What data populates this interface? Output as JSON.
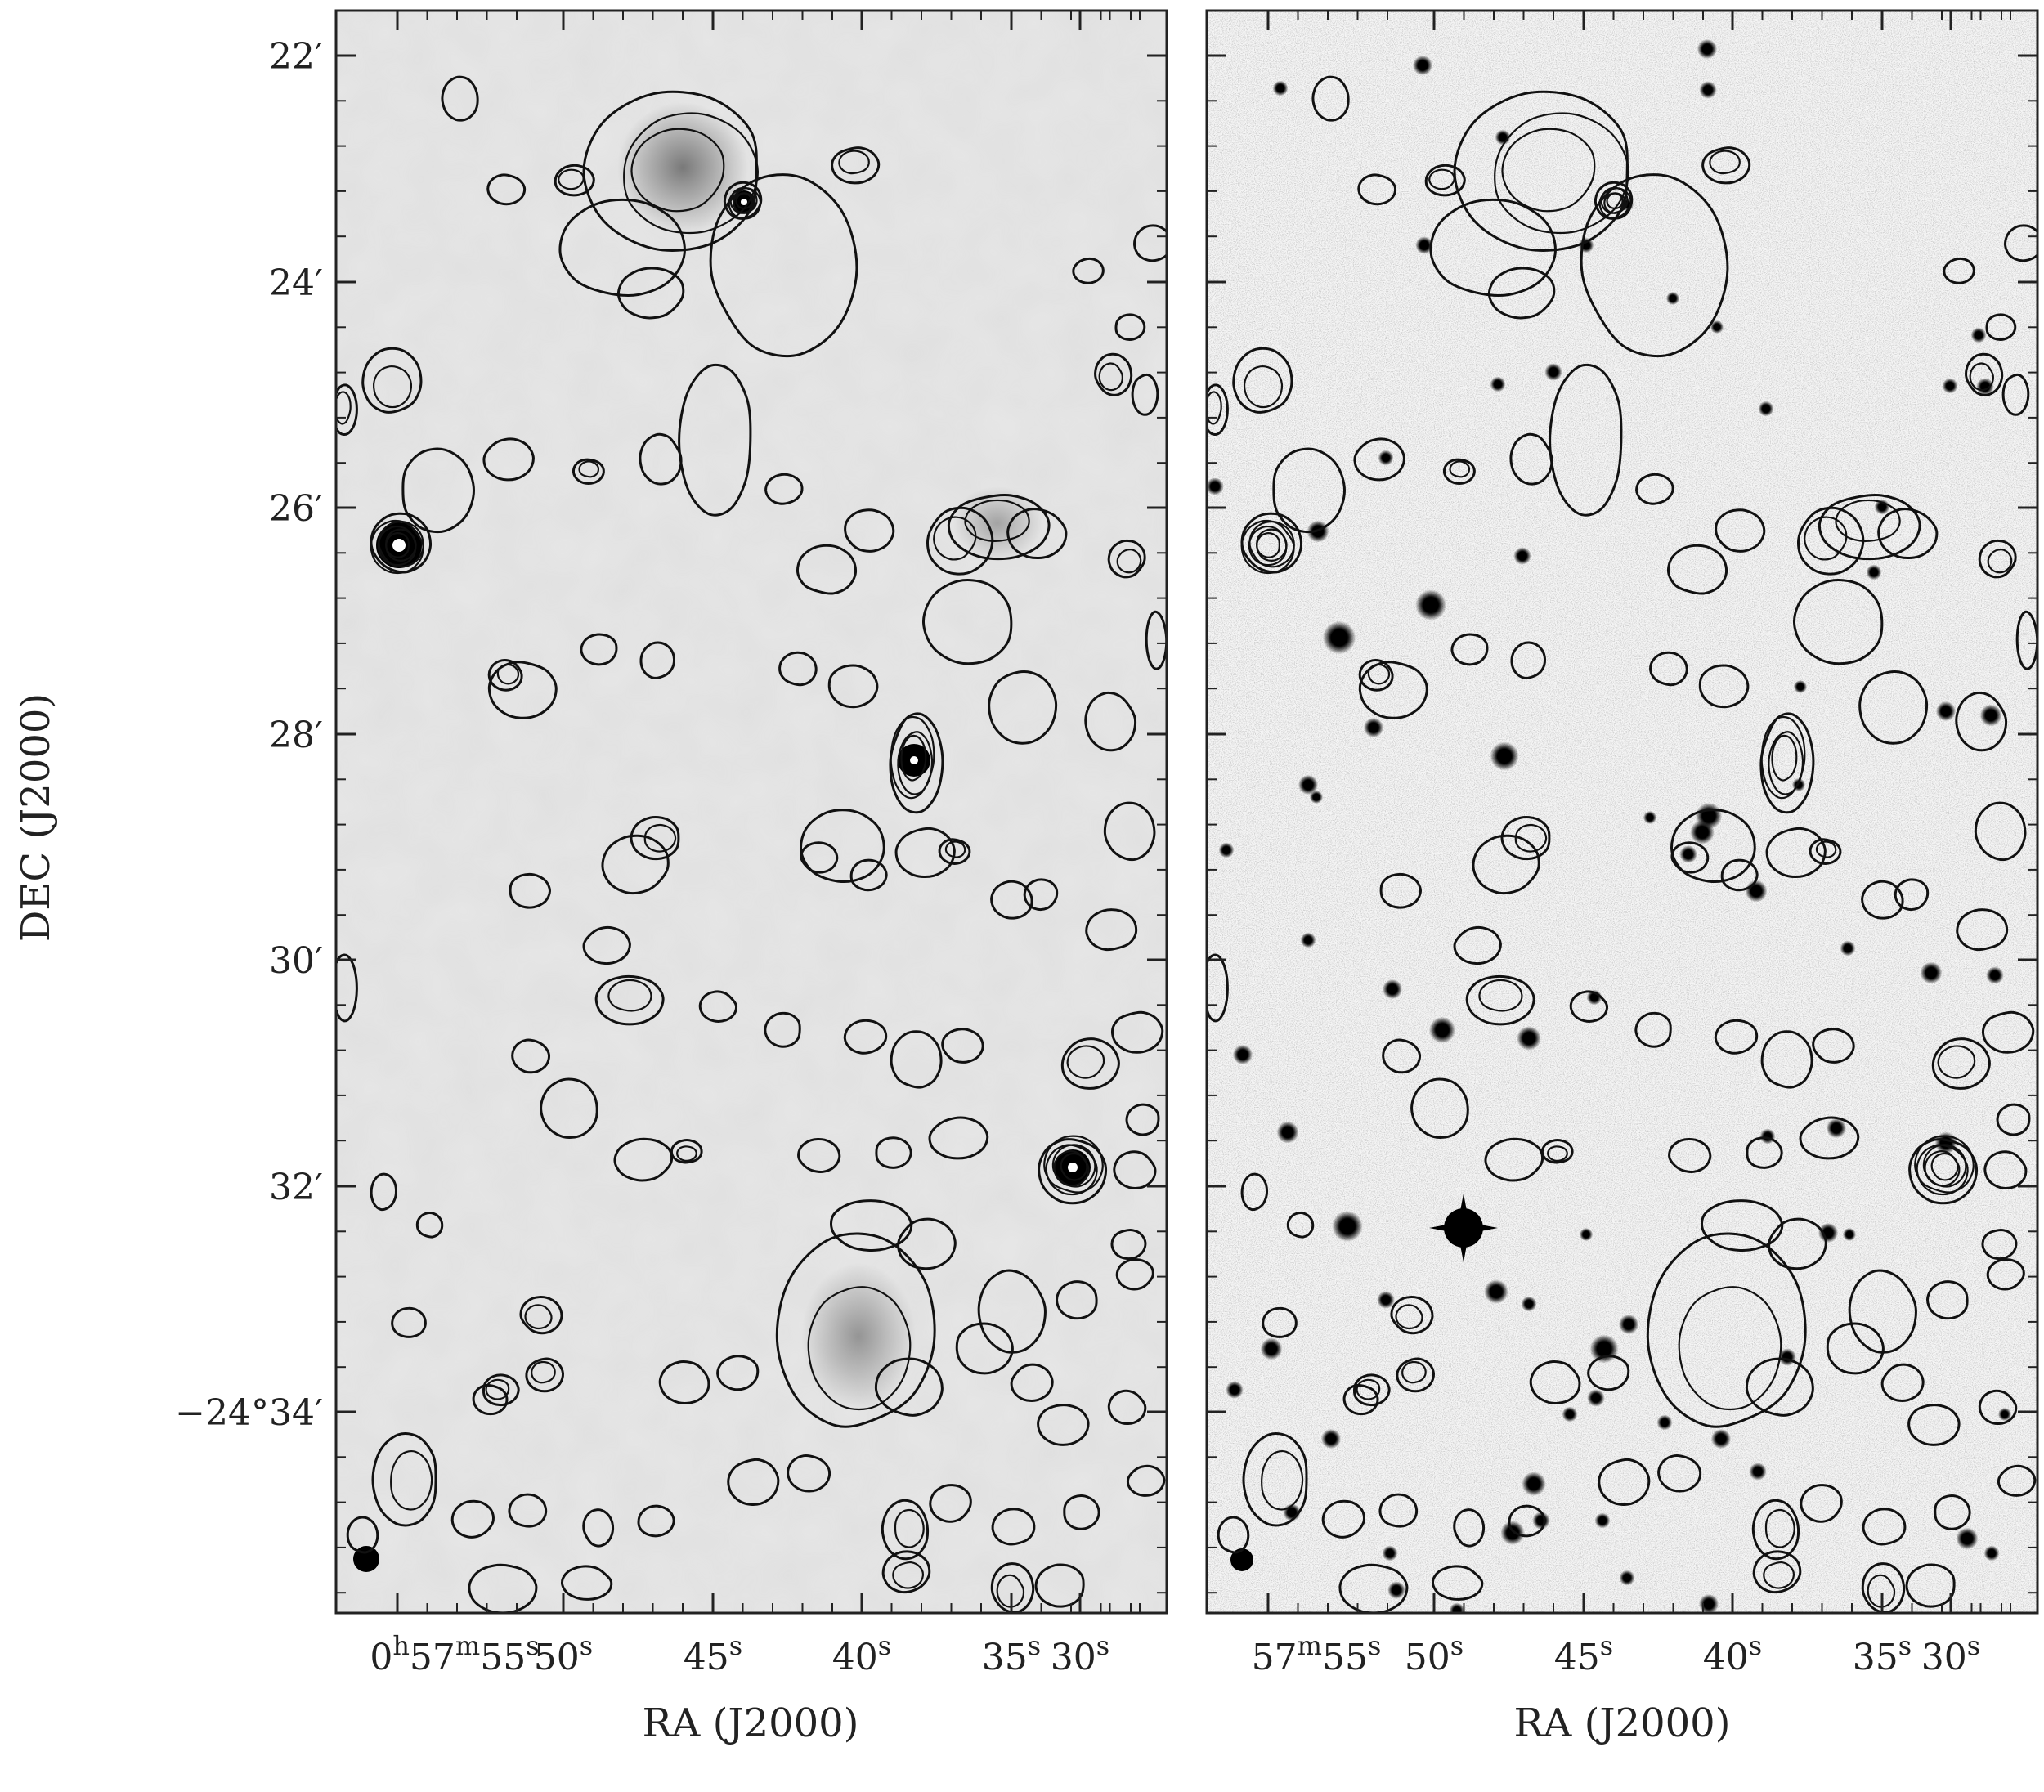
{
  "figure": {
    "ylabel": "DEC (J2000)",
    "panels": [
      {
        "id": "radio",
        "xlabel": "RA (J2000)"
      },
      {
        "id": "optical",
        "xlabel": "RA (J2000)"
      }
    ],
    "dec_ticks": [
      {
        "label": "22′"
      },
      {
        "label": "24′"
      },
      {
        "label": "26′"
      },
      {
        "label": "28′"
      },
      {
        "label": "30′"
      },
      {
        "label": "32′"
      },
      {
        "label": "−24°34′"
      }
    ],
    "ra_ticks_left": [
      {
        "main": "0",
        "sup1": "h",
        "mid": "57",
        "sup2": "m",
        "sec": "55",
        "sup3": "s"
      },
      {
        "sec": "50",
        "sup3": "s"
      },
      {
        "sec": "45",
        "sup3": "s"
      },
      {
        "sec": "40",
        "sup3": "s"
      },
      {
        "sec": "35",
        "sup3": "s"
      },
      {
        "sec": "30",
        "sup3": "s"
      }
    ],
    "ra_ticks_right": [
      {
        "main": "",
        "sup1": "",
        "mid": "57",
        "sup2": "m",
        "sec": "55",
        "sup3": "s"
      },
      {
        "sec": "50",
        "sup3": "s"
      },
      {
        "sec": "45",
        "sup3": "s"
      },
      {
        "sec": "40",
        "sup3": "s"
      },
      {
        "sec": "35",
        "sup3": "s"
      },
      {
        "sec": "30",
        "sup3": "s"
      }
    ]
  }
}
